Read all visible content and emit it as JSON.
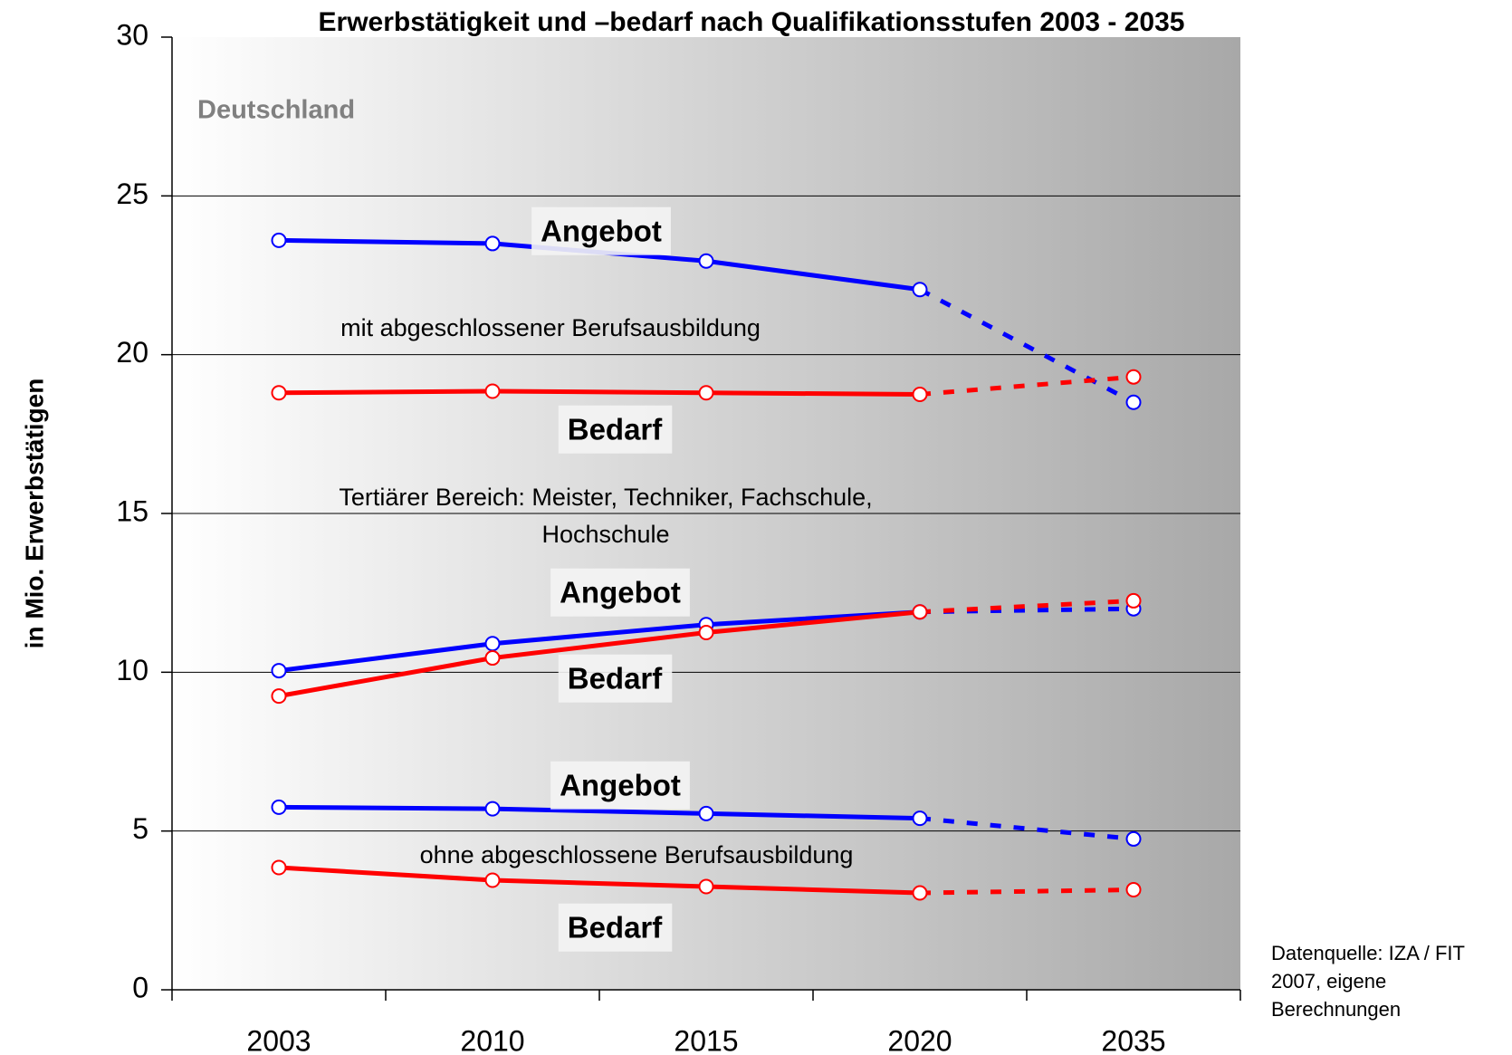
{
  "chart_data": {
    "type": "line",
    "title": "Erwerbstätigkeit und –bedarf nach Qualifikationsstufen 2003 - 2035",
    "subtitle": "Deutschland",
    "y_label": "in Mio. Erwerbstätigen",
    "source": [
      "Datenquelle: IZA / FIT",
      "2007, eigene",
      "Berechnungen"
    ],
    "categories": [
      "2003",
      "2010",
      "2015",
      "2020",
      "2035"
    ],
    "ylim": [
      0,
      30
    ],
    "yticks": [
      0,
      5,
      10,
      15,
      20,
      25,
      30
    ],
    "grid": true,
    "dashed_from_index": 3,
    "annotations": [
      "mit abgeschlossener Berufsausbildung",
      "Tertiärer Bereich: Meister, Techniker, Fachschule,",
      "Hochschule",
      "ohne abgeschlossene Berufsausbildung"
    ],
    "series": [
      {
        "name": "Angebot",
        "color": "#0000ff",
        "values": [
          23.6,
          23.5,
          22.95,
          22.05,
          18.5
        ]
      },
      {
        "name": "Bedarf",
        "color": "#ff0000",
        "values": [
          18.8,
          18.85,
          18.8,
          18.75,
          19.3
        ]
      },
      {
        "name": "Angebot",
        "color": "#0000ff",
        "values": [
          10.05,
          10.9,
          11.5,
          11.9,
          12.0
        ]
      },
      {
        "name": "Bedarf",
        "color": "#ff0000",
        "values": [
          9.25,
          10.45,
          11.25,
          11.9,
          12.25
        ]
      },
      {
        "name": "Angebot",
        "color": "#0000ff",
        "values": [
          5.75,
          5.7,
          5.55,
          5.4,
          4.75
        ]
      },
      {
        "name": "Bedarf",
        "color": "#ff0000",
        "values": [
          3.85,
          3.45,
          3.25,
          3.05,
          3.15
        ]
      }
    ]
  }
}
